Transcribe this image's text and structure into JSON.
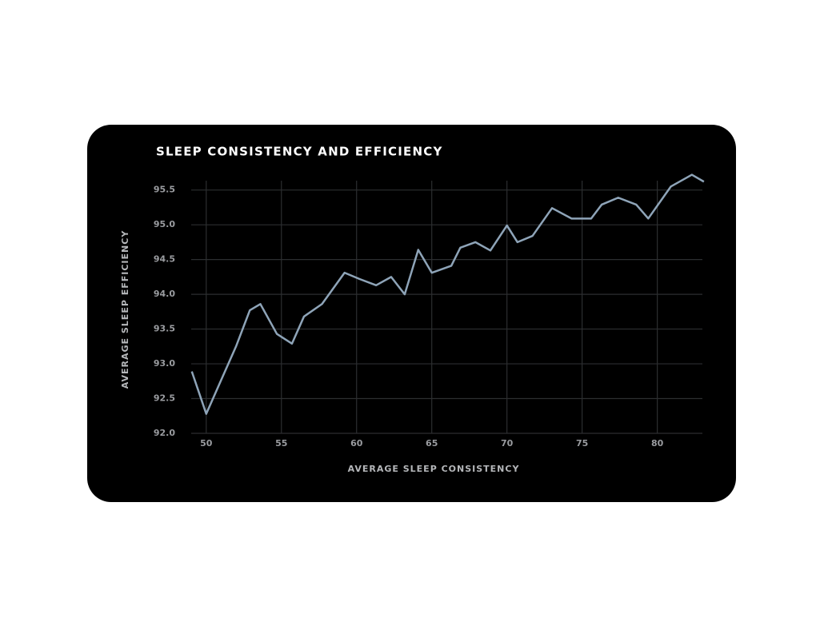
{
  "chart_data": {
    "type": "line",
    "title": "SLEEP CONSISTENCY AND EFFICIENCY",
    "x_label": "AVERAGE SLEEP CONSISTENCY",
    "y_label": "AVERAGE SLEEP EFFICIENCY",
    "x": [
      49.04,
      50,
      51,
      52,
      52.9,
      53.6,
      54.7,
      55.7,
      56.5,
      57.7,
      59.2,
      60.2,
      61.3,
      62.3,
      63.2,
      64.1,
      65.0,
      66.3,
      66.9,
      67.9,
      68.9,
      70.0,
      70.7,
      71.7,
      73.0,
      74.3,
      75.6,
      76.3,
      77.4,
      78.6,
      79.4,
      80.9,
      82.3,
      83.1
    ],
    "series": [
      {
        "name": "Sleep efficiency",
        "color": "#8ea4b8",
        "values": [
          92.89,
          92.28,
          92.77,
          93.26,
          93.77,
          93.86,
          93.43,
          93.29,
          93.68,
          93.86,
          94.31,
          94.22,
          94.13,
          94.25,
          94.0,
          94.64,
          94.31,
          94.41,
          94.67,
          94.75,
          94.63,
          94.99,
          94.75,
          94.84,
          95.24,
          95.09,
          95.09,
          95.29,
          95.39,
          95.29,
          95.09,
          95.55,
          95.72,
          95.62
        ]
      }
    ],
    "xlim": [
      49,
      83
    ],
    "ylim": [
      92,
      95.6
    ],
    "xticks": [
      50,
      55,
      60,
      65,
      70,
      75,
      80
    ],
    "yticks": [
      {
        "value": 92,
        "label": "92.0"
      },
      {
        "value": 92.5,
        "label": "92.5"
      },
      {
        "value": 93,
        "label": "93.0"
      },
      {
        "value": 93.5,
        "label": "93.5"
      },
      {
        "value": 94,
        "label": "94.0"
      },
      {
        "value": 94.5,
        "label": "94.5"
      },
      {
        "value": 95,
        "label": "95.0"
      },
      {
        "value": 95.5,
        "label": "95.5"
      }
    ],
    "grid": true
  }
}
